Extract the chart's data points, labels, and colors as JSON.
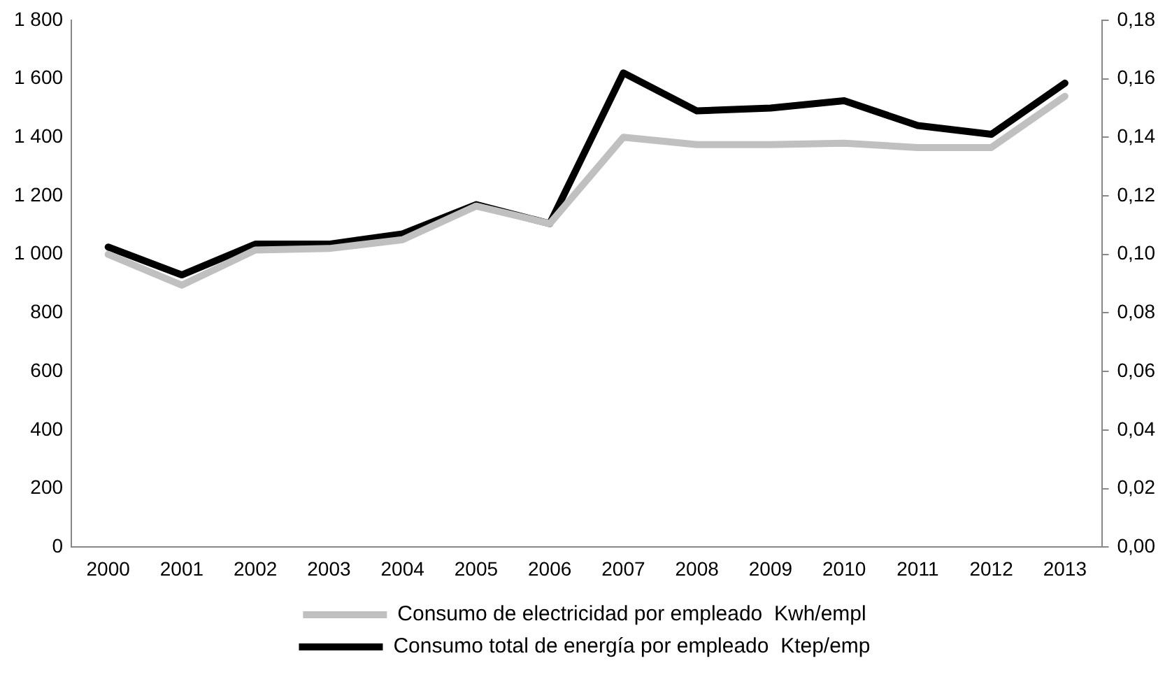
{
  "chart_data": {
    "type": "line",
    "categories": [
      "2000",
      "2001",
      "2002",
      "2003",
      "2004",
      "2005",
      "2006",
      "2007",
      "2008",
      "2009",
      "2010",
      "2011",
      "2012",
      "2013"
    ],
    "series": [
      {
        "name": "Consumo de electricidad por empleado  Kwh/empl",
        "color": "#c0c0c0",
        "values": [
          1000,
          895,
          1015,
          1020,
          1050,
          1165,
          1105,
          1400,
          1375,
          1375,
          1380,
          1365,
          1365,
          1540
        ]
      },
      {
        "name": "Consumo total de energía por empleado  Ktep/emp",
        "color": "#000000",
        "axis": "y2",
        "values": [
          0.1025,
          0.093,
          0.1035,
          0.1035,
          0.107,
          0.117,
          0.1105,
          0.162,
          0.149,
          0.15,
          0.1525,
          0.144,
          0.141,
          0.1585
        ]
      }
    ],
    "ylim": [
      0,
      1800
    ],
    "yticks": [
      0,
      200,
      400,
      600,
      800,
      1000,
      1200,
      1400,
      1600,
      1800
    ],
    "y2lim": [
      0,
      0.18
    ],
    "y2ticks": [
      {
        "value": 0,
        "label": "0,00"
      },
      {
        "value": 0.02,
        "label": "0,02"
      },
      {
        "value": 0.04,
        "label": "0,04"
      },
      {
        "value": 0.06,
        "label": "0,06"
      },
      {
        "value": 0.08,
        "label": "0,08"
      },
      {
        "value": 0.1,
        "label": "0,10"
      },
      {
        "value": 0.12,
        "label": "0,12"
      },
      {
        "value": 0.14,
        "label": "0,14"
      },
      {
        "value": 0.16,
        "label": "0,16"
      },
      {
        "value": 0.18,
        "label": "0,18"
      }
    ],
    "grid": false,
    "legend": "bottom",
    "marker": "none",
    "line_style": "solid"
  }
}
